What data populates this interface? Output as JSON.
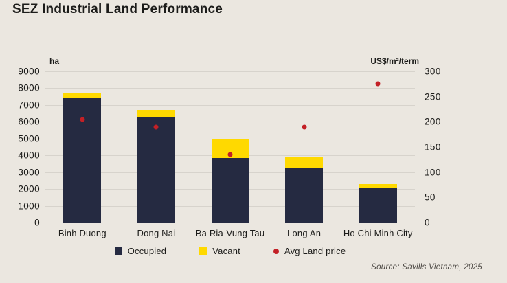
{
  "header": {
    "title": "SEZ Industrial Land Performance"
  },
  "chart_data": {
    "type": "bar",
    "stacked": true,
    "grid": true,
    "legend_position": "bottom",
    "categories": [
      "Binh Duong",
      "Dong Nai",
      "Ba Ria-Vung Tau",
      "Long An",
      "Ho Chi Minh City"
    ],
    "series": [
      {
        "name": "Occupied",
        "type": "bar",
        "axis": "left",
        "color": "#252a41",
        "values": [
          7400,
          6300,
          3850,
          3250,
          2050
        ]
      },
      {
        "name": "Vacant",
        "type": "bar",
        "axis": "left",
        "color": "#ffd900",
        "values": [
          300,
          400,
          1150,
          650,
          250
        ]
      },
      {
        "name": "Avg Land price",
        "type": "scatter",
        "axis": "right",
        "color": "#c32026",
        "values": [
          205,
          190,
          135,
          190,
          275
        ]
      }
    ],
    "left_axis": {
      "label": "ha",
      "min": 0,
      "max": 9000,
      "step": 1000,
      "ticks": [
        "9000",
        "8000",
        "7000",
        "6000",
        "5000",
        "4000",
        "3000",
        "2000",
        "1000",
        "0"
      ]
    },
    "right_axis": {
      "label": "US$/m²/term",
      "min": 0,
      "max": 300,
      "step": 50,
      "ticks": [
        "300",
        "250",
        "200",
        "150",
        "100",
        "50",
        "0"
      ]
    }
  },
  "legend": {
    "items": [
      {
        "label": "Occupied",
        "shape": "square",
        "color": "#252a41"
      },
      {
        "label": "Vacant",
        "shape": "square",
        "color": "#ffd900"
      },
      {
        "label": "Avg Land price",
        "shape": "circle",
        "color": "#c32026"
      }
    ]
  },
  "footer": {
    "source": "Source: Savills Vietnam, 2025"
  },
  "colors": {
    "background": "#ebe7e0",
    "occupied": "#252a41",
    "vacant": "#ffd900",
    "price_dot": "#c32026",
    "gridline": "#d7d3cc",
    "text": "#1c1c1a"
  }
}
